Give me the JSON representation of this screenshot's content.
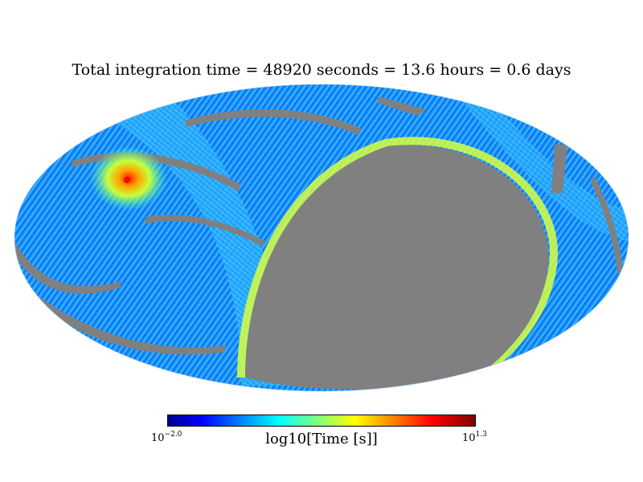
{
  "title": "Total integration time = 48920 seconds = 13.6 hours = 0.6 days",
  "colorbar": {
    "label": "log10[Time [s]]",
    "min_base": "10",
    "min_exp": "−2.0",
    "max_base": "10",
    "max_exp": "1.3",
    "min_value": -2.0,
    "max_value": 1.3,
    "colormap": "jet"
  },
  "map": {
    "projection": "mollweide",
    "unobserved_color": "#808080",
    "unobserved_region": "large oval region centered right of map center, southern/eastern sky",
    "hotspot_color": "#ff0000"
  }
}
